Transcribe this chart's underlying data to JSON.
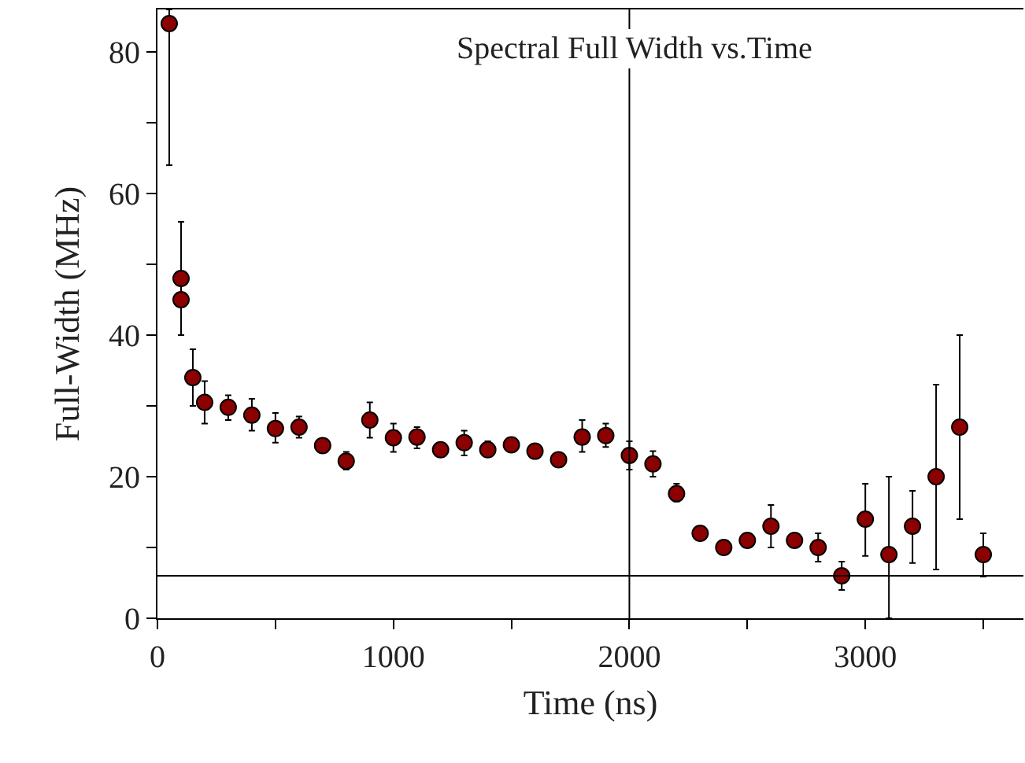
{
  "chart_data": {
    "type": "scatter",
    "title": "Spectral Full Width vs.Time",
    "xlabel": "Time (ns)",
    "ylabel": "Full-Width (MHz)",
    "x": [
      50,
      100,
      100,
      150,
      200,
      300,
      400,
      500,
      600,
      700,
      800,
      900,
      1000,
      1100,
      1200,
      1300,
      1400,
      1500,
      1600,
      1700,
      1800,
      1900,
      2000,
      2100,
      2200,
      2300,
      2400,
      2500,
      2600,
      2700,
      2800,
      2900,
      3000,
      3100,
      3200,
      3300,
      3400,
      3500
    ],
    "series": [
      {
        "color": "#8b0000",
        "values": [
          84,
          48,
          45,
          34,
          30.5,
          29.8,
          28.7,
          26.8,
          27,
          24.4,
          22.2,
          28,
          25.5,
          25.6,
          23.8,
          24.8,
          23.8,
          24.5,
          23.6,
          22.4,
          25.6,
          25.8,
          23,
          21.8,
          17.6,
          12,
          10,
          11,
          13,
          11,
          10,
          6,
          14,
          9,
          13,
          20,
          27,
          9
        ],
        "errors": [
          [
            64,
            86
          ],
          [
            44,
            56
          ],
          [
            40,
            48
          ],
          [
            30,
            38
          ],
          [
            27.5,
            33.5
          ],
          [
            28,
            31.5
          ],
          [
            26.5,
            31
          ],
          [
            24.8,
            29
          ],
          [
            25.5,
            28.5
          ],
          null,
          [
            21,
            23.5
          ],
          [
            25.5,
            30.5
          ],
          [
            23.5,
            27.5
          ],
          [
            24,
            27
          ],
          null,
          [
            23,
            26.5
          ],
          [
            23,
            25
          ],
          null,
          null,
          null,
          [
            23.5,
            28
          ],
          [
            24.2,
            27.5
          ],
          [
            21,
            25
          ],
          [
            20,
            23.6
          ],
          [
            16.5,
            19
          ],
          null,
          null,
          null,
          [
            10,
            16
          ],
          null,
          [
            8,
            12
          ],
          [
            4,
            8
          ],
          [
            8.8,
            19
          ],
          [
            0,
            20
          ],
          [
            7.8,
            18
          ],
          [
            6.9,
            33
          ],
          [
            14,
            40
          ],
          [
            5.9,
            12
          ]
        ]
      }
    ],
    "xlim": [
      0,
      3670
    ],
    "ylim": [
      0,
      86
    ],
    "xticks": [
      0,
      {
        "value": 500,
        "label": null
      },
      1000,
      {
        "value": 1500,
        "label": null
      },
      2000,
      {
        "value": 2500,
        "label": null
      },
      3000,
      {
        "value": 3500,
        "label": null
      }
    ],
    "yticks": [
      0,
      {
        "value": 10,
        "label": null
      },
      20,
      {
        "value": 30,
        "label": null
      },
      40,
      {
        "value": 50,
        "label": null
      },
      60,
      {
        "value": 70,
        "label": null
      },
      80
    ],
    "ref_lines": [
      {
        "axis": "y",
        "value": 6,
        "color": "#000000"
      },
      {
        "axis": "x",
        "value": 2000,
        "color": "#000000"
      }
    ],
    "marker": "circle"
  }
}
